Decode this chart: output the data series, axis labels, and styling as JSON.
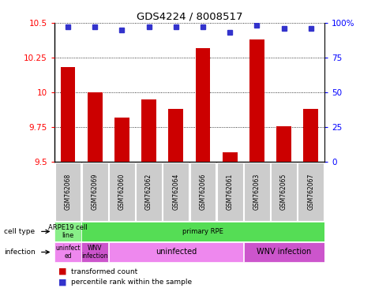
{
  "title": "GDS4224 / 8008517",
  "samples": [
    "GSM762068",
    "GSM762069",
    "GSM762060",
    "GSM762062",
    "GSM762064",
    "GSM762066",
    "GSM762061",
    "GSM762063",
    "GSM762065",
    "GSM762067"
  ],
  "transformed_counts": [
    10.18,
    10.0,
    9.82,
    9.95,
    9.88,
    10.32,
    9.57,
    10.38,
    9.76,
    9.88
  ],
  "percentile_ranks": [
    97,
    97,
    95,
    97,
    97,
    97,
    93,
    98,
    96,
    96
  ],
  "ylim": [
    9.5,
    10.5
  ],
  "yticks": [
    9.5,
    9.75,
    10.0,
    10.25,
    10.5
  ],
  "ytick_labels": [
    "9.5",
    "9.75",
    "10",
    "10.25",
    "10.5"
  ],
  "bar_color": "#cc0000",
  "dot_color": "#3333cc",
  "bar_bottom": 9.5,
  "cell_type_row": [
    {
      "label": "ARPE19 cell\nline",
      "start": 0,
      "end": 1,
      "color": "#88ee88"
    },
    {
      "label": "primary RPE",
      "start": 1,
      "end": 10,
      "color": "#55dd55"
    }
  ],
  "infection_row": [
    {
      "label": "uninfect\ned",
      "start": 0,
      "end": 1,
      "color": "#ee88ee"
    },
    {
      "label": "WNV\ninfection",
      "start": 1,
      "end": 2,
      "color": "#cc55cc"
    },
    {
      "label": "uninfected",
      "start": 2,
      "end": 7,
      "color": "#ee88ee"
    },
    {
      "label": "WNV infection",
      "start": 7,
      "end": 10,
      "color": "#cc55cc"
    }
  ],
  "right_yticks": [
    0,
    25,
    50,
    75,
    100
  ],
  "right_ytick_labels": [
    "0",
    "25",
    "50",
    "75",
    "100%"
  ],
  "sample_bg_color": "#cccccc",
  "left_label_cell_type": "cell type",
  "left_label_infection": "infection",
  "legend_bar_label": "transformed count",
  "legend_dot_label": "percentile rank within the sample"
}
